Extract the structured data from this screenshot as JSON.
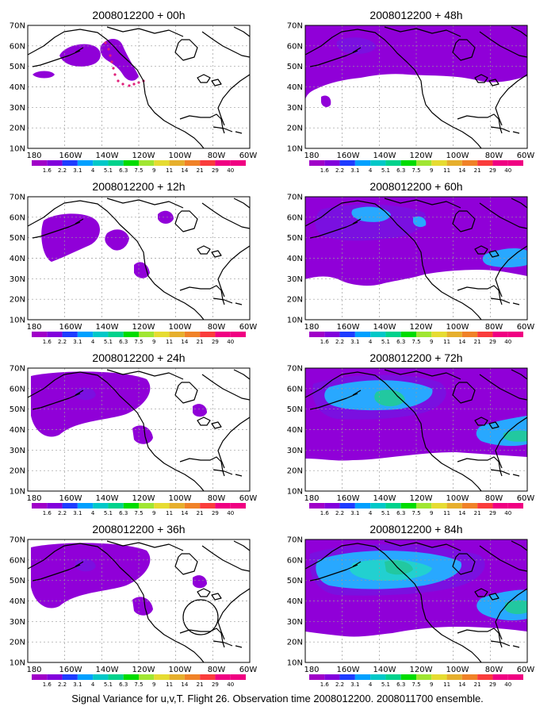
{
  "panels": [
    {
      "title": "2008012200 + 00h",
      "level": 0
    },
    {
      "title": "2008012200 + 48h",
      "level": 3
    },
    {
      "title": "2008012200 + 12h",
      "level": 1
    },
    {
      "title": "2008012200 + 60h",
      "level": 4
    },
    {
      "title": "2008012200 + 24h",
      "level": 2
    },
    {
      "title": "2008012200 + 72h",
      "level": 5
    },
    {
      "title": "2008012200 + 36h",
      "level": 2
    },
    {
      "title": "2008012200 + 84h",
      "level": 6
    }
  ],
  "lat_labels": [
    "70N",
    "60N",
    "50N",
    "40N",
    "30N",
    "20N",
    "10N"
  ],
  "lon_labels": [
    "180",
    "160W",
    "140W",
    "120W",
    "100W",
    "80W",
    "60W"
  ],
  "colorbar": {
    "labels": [
      "1.6",
      "2.2",
      "3.1",
      "4",
      "5.1",
      "6.3",
      "7.5",
      "9",
      "11",
      "14",
      "21",
      "29",
      "40"
    ],
    "colors": [
      "#a000c8",
      "#8200dc",
      "#1e3cff",
      "#00a0ff",
      "#00c8c8",
      "#00d28c",
      "#00dc00",
      "#a0e632",
      "#e6dc32",
      "#e6af2d",
      "#f08228",
      "#fa3c3c",
      "#f00082"
    ]
  },
  "caption": "Signal Variance for u,v,T. Flight 26. Observation time 2008012200. 2008011700 ensemble.",
  "fill_colors": {
    "purple": "#9000d8",
    "violet": "#7a10e0",
    "blue": "#3878ff",
    "light_blue": "#28a8ff",
    "cyan": "#22d0d0",
    "teal": "#22c8a0"
  }
}
